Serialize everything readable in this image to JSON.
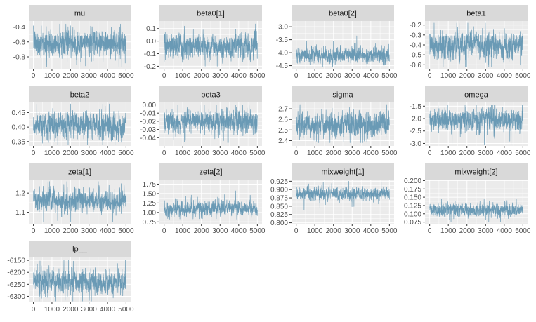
{
  "colors": {
    "trace": "#6a9ab5",
    "panel_bg": "#ebebeb",
    "strip_bg": "#d9d9d9",
    "grid_major": "#ffffff",
    "tick_text": "#4d4d4d",
    "strip_text": "#1a1a1a"
  },
  "chart_data": [
    {
      "type": "line",
      "title": "mu",
      "x": [
        0,
        5000
      ],
      "xticks": [
        0,
        1000,
        2000,
        3000,
        4000,
        5000
      ],
      "ylim": [
        -0.96,
        -0.32
      ],
      "yticks": [
        -0.4,
        -0.6,
        -0.8
      ],
      "ytick_labels": [
        "-0.4",
        "-0.6",
        "-0.8"
      ],
      "summary": {
        "center": -0.62,
        "spread": 0.09,
        "min": -0.93,
        "max": -0.36
      },
      "grid": true
    },
    {
      "type": "line",
      "title": "beta0[1]",
      "x": [
        0,
        5000
      ],
      "xticks": [
        0,
        1000,
        2000,
        3000,
        4000,
        5000
      ],
      "ylim": [
        -0.22,
        0.16
      ],
      "yticks": [
        0.1,
        0.0,
        -0.1,
        -0.2
      ],
      "ytick_labels": [
        "0.1",
        "0.0",
        "-0.1",
        "-0.2"
      ],
      "summary": {
        "center": -0.04,
        "spread": 0.05,
        "min": -0.2,
        "max": 0.14
      },
      "grid": true
    },
    {
      "type": "line",
      "title": "beta0[2]",
      "x": [
        0,
        5000
      ],
      "xticks": [
        0,
        1000,
        2000,
        3000,
        4000,
        5000
      ],
      "ylim": [
        -4.62,
        -2.78
      ],
      "yticks": [
        -3.0,
        -3.5,
        -4.0,
        -4.5
      ],
      "ytick_labels": [
        "-3.0",
        "-3.5",
        "-4.0",
        "-4.5"
      ],
      "summary": {
        "center": -4.1,
        "spread": 0.15,
        "min": -4.55,
        "max": -2.9
      },
      "grid": true
    },
    {
      "type": "line",
      "title": "beta1",
      "x": [
        0,
        5000
      ],
      "xticks": [
        0,
        1000,
        2000,
        3000,
        4000,
        5000
      ],
      "ylim": [
        -0.64,
        -0.16
      ],
      "yticks": [
        -0.2,
        -0.3,
        -0.4,
        -0.5,
        -0.6
      ],
      "ytick_labels": [
        "-0.2",
        "-0.3",
        "-0.4",
        "-0.5",
        "-0.6"
      ],
      "summary": {
        "center": -0.41,
        "spread": 0.07,
        "min": -0.62,
        "max": -0.18
      },
      "grid": true
    },
    {
      "type": "line",
      "title": "beta2",
      "x": [
        0,
        5000
      ],
      "xticks": [
        0,
        1000,
        2000,
        3000,
        4000,
        5000
      ],
      "ylim": [
        0.335,
        0.485
      ],
      "yticks": [
        0.45,
        0.4,
        0.35
      ],
      "ytick_labels": [
        "0.45",
        "0.40",
        "0.35"
      ],
      "summary": {
        "center": 0.405,
        "spread": 0.022,
        "min": 0.34,
        "max": 0.48
      },
      "grid": true
    },
    {
      "type": "line",
      "title": "beta3",
      "x": [
        0,
        5000
      ],
      "xticks": [
        0,
        1000,
        2000,
        3000,
        4000,
        5000
      ],
      "ylim": [
        -0.05,
        0.003
      ],
      "yticks": [
        0.0,
        -0.01,
        -0.02,
        -0.03,
        -0.04
      ],
      "ytick_labels": [
        "0.00",
        "-0.01",
        "-0.02",
        "-0.03",
        "-0.04"
      ],
      "summary": {
        "center": -0.021,
        "spread": 0.007,
        "min": -0.046,
        "max": 0.0
      },
      "grid": true
    },
    {
      "type": "line",
      "title": "sigma",
      "x": [
        0,
        5000
      ],
      "xticks": [
        0,
        1000,
        2000,
        3000,
        4000,
        5000
      ],
      "ylim": [
        2.35,
        2.76
      ],
      "yticks": [
        2.7,
        2.6,
        2.5,
        2.4
      ],
      "ytick_labels": [
        "2.7",
        "2.6",
        "2.5",
        "2.4"
      ],
      "summary": {
        "center": 2.55,
        "spread": 0.06,
        "min": 2.38,
        "max": 2.74
      },
      "grid": true
    },
    {
      "type": "line",
      "title": "omega",
      "x": [
        0,
        5000
      ],
      "xticks": [
        0,
        1000,
        2000,
        3000,
        4000,
        5000
      ],
      "ylim": [
        -3.1,
        -1.35
      ],
      "yticks": [
        -1.5,
        -2.0,
        -2.5,
        -3.0
      ],
      "ytick_labels": [
        "-1.5",
        "-2.0",
        "-2.5",
        "-3.0"
      ],
      "summary": {
        "center": -2.05,
        "spread": 0.22,
        "min": -3.05,
        "max": -1.45
      },
      "grid": true
    },
    {
      "type": "line",
      "title": "zeta[1]",
      "x": [
        0,
        5000
      ],
      "xticks": [
        0,
        1000,
        2000,
        3000,
        4000,
        5000
      ],
      "ylim": [
        1.04,
        1.27
      ],
      "yticks": [
        1.2,
        1.1
      ],
      "ytick_labels": [
        "1.2",
        "1.1"
      ],
      "summary": {
        "center": 1.16,
        "spread": 0.03,
        "min": 1.05,
        "max": 1.26
      },
      "grid": true
    },
    {
      "type": "line",
      "title": "zeta[2]",
      "x": [
        0,
        5000
      ],
      "xticks": [
        0,
        1000,
        2000,
        3000,
        4000,
        5000
      ],
      "ylim": [
        0.7,
        1.87
      ],
      "yticks": [
        1.75,
        1.5,
        1.25,
        1.0,
        0.75
      ],
      "ytick_labels": [
        "1.75",
        "1.50",
        "1.25",
        "1.00",
        "0.75"
      ],
      "summary": {
        "center": 1.1,
        "spread": 0.1,
        "min": 0.82,
        "max": 1.8
      },
      "grid": true
    },
    {
      "type": "line",
      "title": "mixweight[1]",
      "x": [
        0,
        5000
      ],
      "xticks": [
        0,
        1000,
        2000,
        3000,
        4000,
        5000
      ],
      "ylim": [
        0.797,
        0.93
      ],
      "yticks": [
        0.925,
        0.9,
        0.875,
        0.85,
        0.825,
        0.8
      ],
      "ytick_labels": [
        "0.925",
        "0.900",
        "0.875",
        "0.850",
        "0.825",
        "0.800"
      ],
      "summary": {
        "center": 0.888,
        "spread": 0.01,
        "min": 0.8,
        "max": 0.925
      },
      "grid": true
    },
    {
      "type": "line",
      "title": "mixweight[2]",
      "x": [
        0,
        5000
      ],
      "xticks": [
        0,
        1000,
        2000,
        3000,
        4000,
        5000
      ],
      "ylim": [
        0.07,
        0.203
      ],
      "yticks": [
        0.2,
        0.175,
        0.15,
        0.125,
        0.1,
        0.075
      ],
      "ytick_labels": [
        "0.200",
        "0.175",
        "0.150",
        "0.125",
        "0.100",
        "0.075"
      ],
      "summary": {
        "center": 0.112,
        "spread": 0.01,
        "min": 0.075,
        "max": 0.2
      },
      "grid": true
    },
    {
      "type": "line",
      "title": "lp__",
      "x": [
        0,
        5000
      ],
      "xticks": [
        0,
        1000,
        2000,
        3000,
        4000,
        5000
      ],
      "ylim": [
        -6325,
        -6135
      ],
      "yticks": [
        -6150,
        -6200,
        -6250,
        -6300
      ],
      "ytick_labels": [
        "-6150",
        "-6200",
        "-6250",
        "-6300"
      ],
      "summary": {
        "center": -6240,
        "spread": 25,
        "min": -6320,
        "max": -6150
      },
      "grid": true
    }
  ]
}
